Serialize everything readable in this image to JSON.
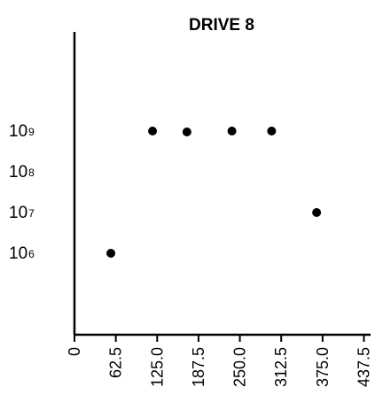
{
  "chart_data": {
    "type": "scatter",
    "title": "DRIVE 8",
    "xlabel": "",
    "ylabel": "",
    "x_ticks": [
      "0",
      "62.5",
      "125.0",
      "187.5",
      "250.0",
      "312.5",
      "375.0",
      "437.5"
    ],
    "y_ticks": [
      {
        "base": "10",
        "exp": "9",
        "value": 1000000000
      },
      {
        "base": "10",
        "exp": "8",
        "value": 100000000
      },
      {
        "base": "10",
        "exp": "7",
        "value": 10000000
      },
      {
        "base": "10",
        "exp": "6",
        "value": 1000000
      }
    ],
    "y_scale": "log",
    "xlim": [
      0,
      437.5
    ],
    "ylim": [
      10000,
      100000000000
    ],
    "grid": false,
    "points": [
      {
        "x": 55,
        "y": 1000000
      },
      {
        "x": 118,
        "y": 1000000000
      },
      {
        "x": 170,
        "y": 950000000
      },
      {
        "x": 238,
        "y": 1000000000
      },
      {
        "x": 298,
        "y": 1000000000
      },
      {
        "x": 366,
        "y": 10000000
      }
    ],
    "colors": {
      "axis": "#000000",
      "marker": "#000000",
      "text": "#000000"
    }
  }
}
